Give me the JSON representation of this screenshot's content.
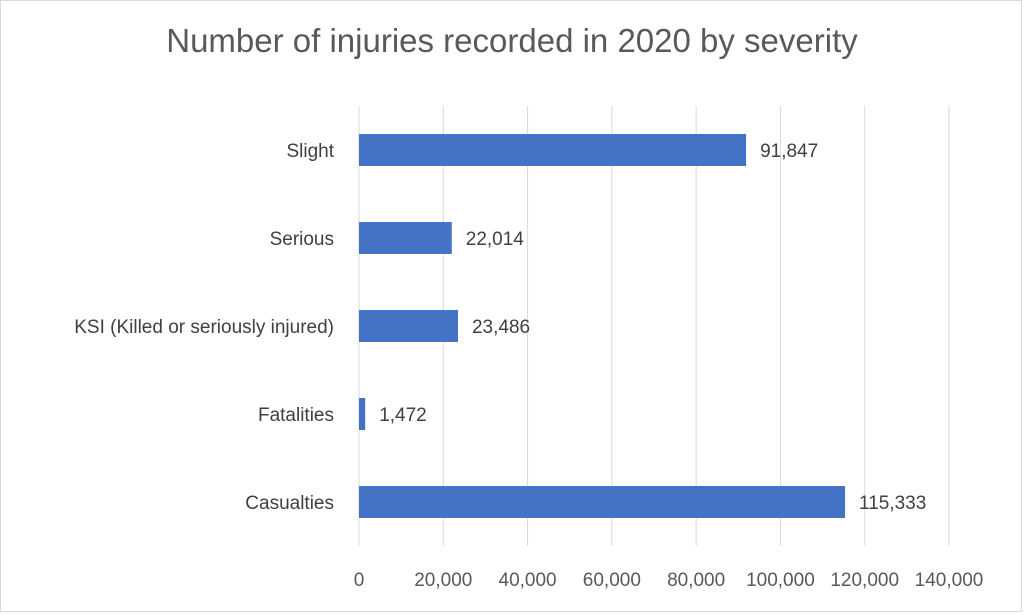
{
  "chart_data": {
    "type": "bar",
    "orientation": "horizontal",
    "title": "Number of injuries recorded in 2020 by severity",
    "categories": [
      "Slight",
      "Serious",
      "KSI (Killed or seriously injured)",
      "Fatalities",
      "Casualties"
    ],
    "values": [
      91847,
      22014,
      23486,
      1472,
      115333
    ],
    "data_labels": [
      "91,847",
      "22,014",
      "23,486",
      "1,472",
      "115,333"
    ],
    "xlim": [
      0,
      140000
    ],
    "xticks": [
      0,
      20000,
      40000,
      60000,
      80000,
      100000,
      120000,
      140000
    ],
    "xtick_labels": [
      "0",
      "20,000",
      "40,000",
      "60,000",
      "80,000",
      "100,000",
      "120,000",
      "140,000"
    ],
    "xlabel": "",
    "ylabel": "",
    "grid": "vertical",
    "legend": "none",
    "bar_color": "#4472C4"
  }
}
